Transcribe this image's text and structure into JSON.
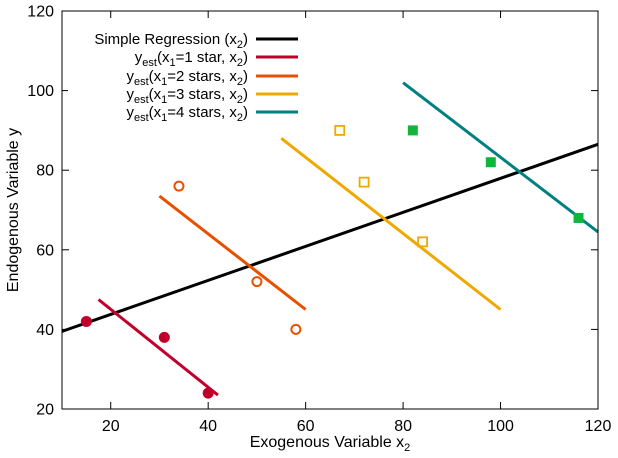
{
  "chart_data": {
    "type": "scatter",
    "xlabel": "Exogenous Variable x",
    "xlabel_sub": "2",
    "ylabel": "Endogenous Variable y",
    "xlim": [
      10,
      120
    ],
    "ylim": [
      20,
      120
    ],
    "xticks": [
      20,
      40,
      60,
      80,
      100,
      120
    ],
    "yticks": [
      20,
      40,
      60,
      80,
      100,
      120
    ],
    "grid": false,
    "legend_position": "top-left",
    "points": [
      {
        "group": "1 star",
        "marker": "filled-circle",
        "color": "#c0002a",
        "data": [
          [
            15,
            42
          ],
          [
            31,
            38
          ],
          [
            40,
            24
          ]
        ]
      },
      {
        "group": "2 stars",
        "marker": "open-circle",
        "color": "#e85000",
        "data": [
          [
            34,
            76
          ],
          [
            50,
            52
          ],
          [
            58,
            40
          ]
        ]
      },
      {
        "group": "3 stars",
        "marker": "open-square",
        "color": "#f0a800",
        "data": [
          [
            67,
            90
          ],
          [
            72,
            77
          ],
          [
            84,
            62
          ]
        ]
      },
      {
        "group": "4 stars",
        "marker": "filled-square",
        "color": "#12b53c",
        "data": [
          [
            82,
            90
          ],
          [
            98,
            82
          ],
          [
            116,
            68
          ]
        ]
      }
    ],
    "series": [
      {
        "name": "Simple Regression (x",
        "sub": "2",
        "post": ")",
        "color": "#000000",
        "x": [
          10,
          120
        ],
        "y": [
          39.5,
          86.5
        ]
      },
      {
        "name": "y",
        "sub": "est",
        "post": "(x",
        "sub2": "1",
        "post2": "=1 star,   x",
        "sub3": "2",
        "post3": ")",
        "color": "#c0002a",
        "x": [
          17.5,
          42
        ],
        "y": [
          47.5,
          23.5
        ]
      },
      {
        "name": "y",
        "sub": "est",
        "post": "(x",
        "sub2": "1",
        "post2": "=2 stars, x",
        "sub3": "2",
        "post3": ")",
        "color": "#e85000",
        "x": [
          30,
          60
        ],
        "y": [
          73.5,
          45
        ]
      },
      {
        "name": "y",
        "sub": "est",
        "post": "(x",
        "sub2": "1",
        "post2": "=3 stars, x",
        "sub3": "2",
        "post3": ")",
        "color": "#f0a800",
        "x": [
          55,
          100
        ],
        "y": [
          88,
          45
        ]
      },
      {
        "name": "y",
        "sub": "est",
        "post": "(x",
        "sub2": "1",
        "post2": "=4 stars, x",
        "sub3": "2",
        "post3": ")",
        "color": "#008080",
        "x": [
          80,
          120
        ],
        "y": [
          102,
          64.5
        ]
      }
    ]
  }
}
